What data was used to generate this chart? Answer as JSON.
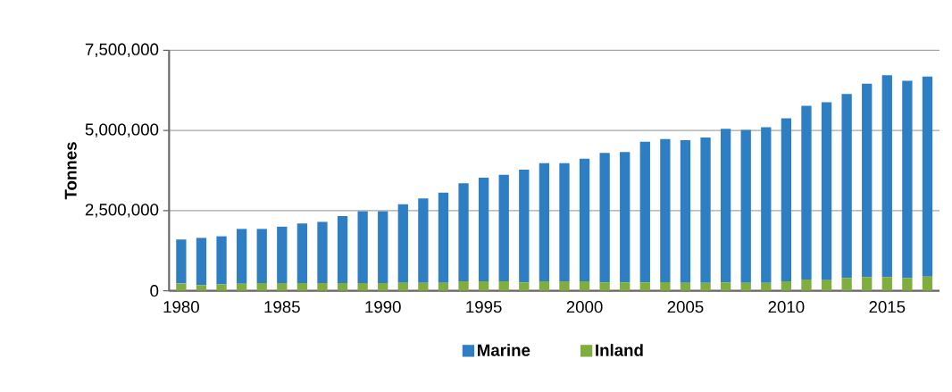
{
  "chart_data": {
    "type": "bar",
    "stacked": true,
    "ylabel": "Tonnes",
    "x": [
      1980,
      1981,
      1982,
      1983,
      1984,
      1985,
      1986,
      1987,
      1988,
      1989,
      1990,
      1991,
      1992,
      1993,
      1994,
      1995,
      1996,
      1997,
      1998,
      1999,
      2000,
      2001,
      2002,
      2003,
      2004,
      2005,
      2006,
      2007,
      2008,
      2009,
      2010,
      2011,
      2012,
      2013,
      2014,
      2015,
      2016,
      2017
    ],
    "series": [
      {
        "name": "Inland",
        "color": "#7fae3f",
        "values": [
          230000,
          180000,
          200000,
          220000,
          240000,
          240000,
          240000,
          240000,
          240000,
          240000,
          240000,
          250000,
          250000,
          250000,
          300000,
          300000,
          300000,
          260000,
          300000,
          300000,
          300000,
          260000,
          260000,
          260000,
          270000,
          250000,
          250000,
          260000,
          250000,
          250000,
          300000,
          350000,
          330000,
          400000,
          430000,
          430000,
          400000,
          440000
        ]
      },
      {
        "name": "Marine",
        "color": "#2e7ec4",
        "values": [
          1370000,
          1470000,
          1500000,
          1710000,
          1690000,
          1760000,
          1860000,
          1910000,
          2090000,
          2240000,
          2240000,
          2450000,
          2630000,
          2810000,
          3050000,
          3230000,
          3320000,
          3520000,
          3680000,
          3680000,
          3820000,
          4040000,
          4070000,
          4390000,
          4460000,
          4450000,
          4530000,
          4790000,
          4770000,
          4850000,
          5080000,
          5420000,
          5550000,
          5740000,
          6030000,
          6290000,
          6150000,
          6240000
        ]
      }
    ],
    "xlim": [
      1979.4,
      2017.6
    ],
    "xticks": [
      1980,
      1985,
      1990,
      1995,
      2000,
      2005,
      2010,
      2015
    ],
    "ylim": [
      0,
      7500000
    ],
    "yticks": [
      {
        "value": 0,
        "label": "0"
      },
      {
        "value": 2500000,
        "label": "2,500,000"
      },
      {
        "value": 5000000,
        "label": "5,000,000"
      },
      {
        "value": 7500000,
        "label": "7,500,000"
      }
    ],
    "grid": "y",
    "legend": "bottom"
  }
}
